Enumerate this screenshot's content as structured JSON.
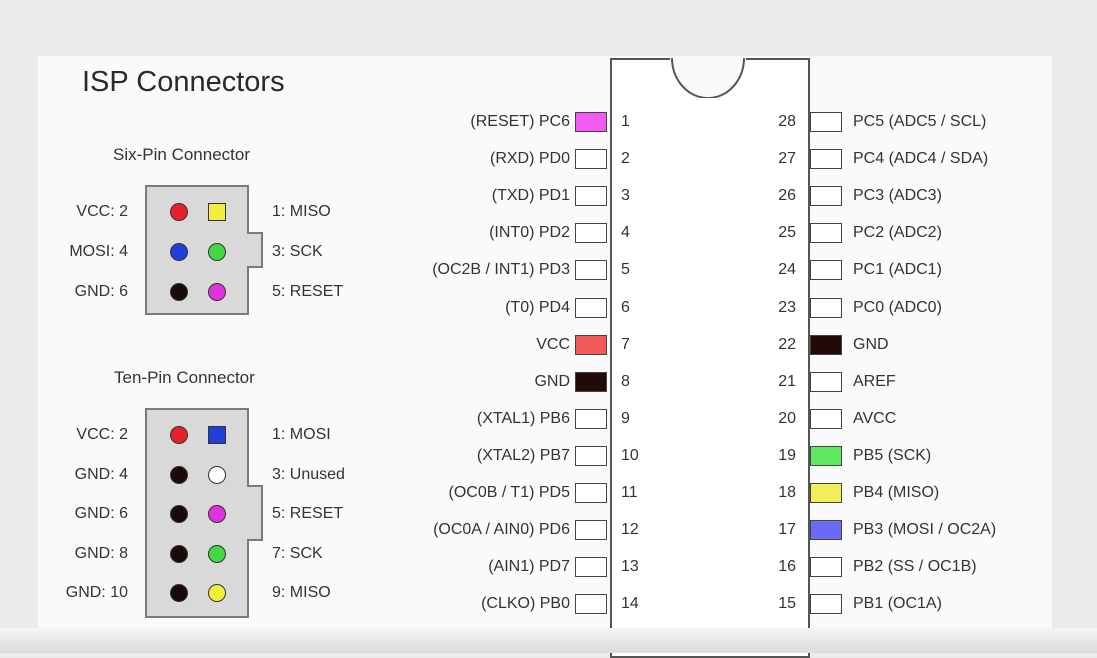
{
  "title": "ISP Connectors",
  "six_pin": {
    "caption": "Six-Pin Connector",
    "left_labels": [
      "VCC: 2",
      "MOSI: 4",
      "GND: 6"
    ],
    "right_labels": [
      "1: MISO",
      "3: SCK",
      "5: RESET"
    ],
    "even_colors": [
      "#e8202a",
      "#1f3fd6",
      "#1a0a0a"
    ],
    "odd_colors": [
      "#f2ee3c",
      "#44d844",
      "#e033e0"
    ]
  },
  "ten_pin": {
    "caption": "Ten-Pin Connector",
    "left_labels": [
      "VCC: 2",
      "GND: 4",
      "GND: 6",
      "GND: 8",
      "GND: 10"
    ],
    "right_labels": [
      "1: MOSI",
      "3: Unused",
      "5: RESET",
      "7: SCK",
      "9: MISO"
    ],
    "even_colors": [
      "#e8202a",
      "#1a0a0a",
      "#1a0a0a",
      "#1a0a0a",
      "#1a0a0a"
    ],
    "odd_colors": [
      "#1f3fd6",
      "#ffffff",
      "#e033e0",
      "#44d844",
      "#f2ee3c"
    ]
  },
  "chip": {
    "left_pins": [
      {
        "num": "1",
        "name": "(RESET) PC6",
        "color": "#f25cf2"
      },
      {
        "num": "2",
        "name": "(RXD) PD0",
        "color": "#ffffff"
      },
      {
        "num": "3",
        "name": "(TXD) PD1",
        "color": "#ffffff"
      },
      {
        "num": "4",
        "name": "(INT0) PD2",
        "color": "#ffffff"
      },
      {
        "num": "5",
        "name": "(OC2B / INT1) PD3",
        "color": "#ffffff"
      },
      {
        "num": "6",
        "name": "(T0) PD4",
        "color": "#ffffff"
      },
      {
        "num": "7",
        "name": "VCC",
        "color": "#f25a5a"
      },
      {
        "num": "8",
        "name": "GND",
        "color": "#220a0a"
      },
      {
        "num": "9",
        "name": "(XTAL1) PB6",
        "color": "#ffffff"
      },
      {
        "num": "10",
        "name": "(XTAL2) PB7",
        "color": "#ffffff"
      },
      {
        "num": "11",
        "name": "(OC0B / T1) PD5",
        "color": "#ffffff"
      },
      {
        "num": "12",
        "name": "(OC0A / AIN0) PD6",
        "color": "#ffffff"
      },
      {
        "num": "13",
        "name": "(AIN1) PD7",
        "color": "#ffffff"
      },
      {
        "num": "14",
        "name": "(CLKO) PB0",
        "color": "#ffffff"
      }
    ],
    "right_pins": [
      {
        "num": "28",
        "name": "PC5 (ADC5 / SCL)",
        "color": "#ffffff"
      },
      {
        "num": "27",
        "name": "PC4 (ADC4 / SDA)",
        "color": "#ffffff"
      },
      {
        "num": "26",
        "name": "PC3 (ADC3)",
        "color": "#ffffff"
      },
      {
        "num": "25",
        "name": "PC2 (ADC2)",
        "color": "#ffffff"
      },
      {
        "num": "24",
        "name": "PC1 (ADC1)",
        "color": "#ffffff"
      },
      {
        "num": "23",
        "name": "PC0 (ADC0)",
        "color": "#ffffff"
      },
      {
        "num": "22",
        "name": "GND",
        "color": "#220a0a"
      },
      {
        "num": "21",
        "name": "AREF",
        "color": "#ffffff"
      },
      {
        "num": "20",
        "name": "AVCC",
        "color": "#ffffff"
      },
      {
        "num": "19",
        "name": "PB5 (SCK)",
        "color": "#5ee85e"
      },
      {
        "num": "18",
        "name": "PB4 (MISO)",
        "color": "#f2ee5a"
      },
      {
        "num": "17",
        "name": "PB3 (MOSI / OC2A)",
        "color": "#6a6af2"
      },
      {
        "num": "16",
        "name": "PB2 (SS / OC1B)",
        "color": "#ffffff"
      },
      {
        "num": "15",
        "name": "PB1 (OC1A)",
        "color": "#ffffff"
      }
    ]
  }
}
